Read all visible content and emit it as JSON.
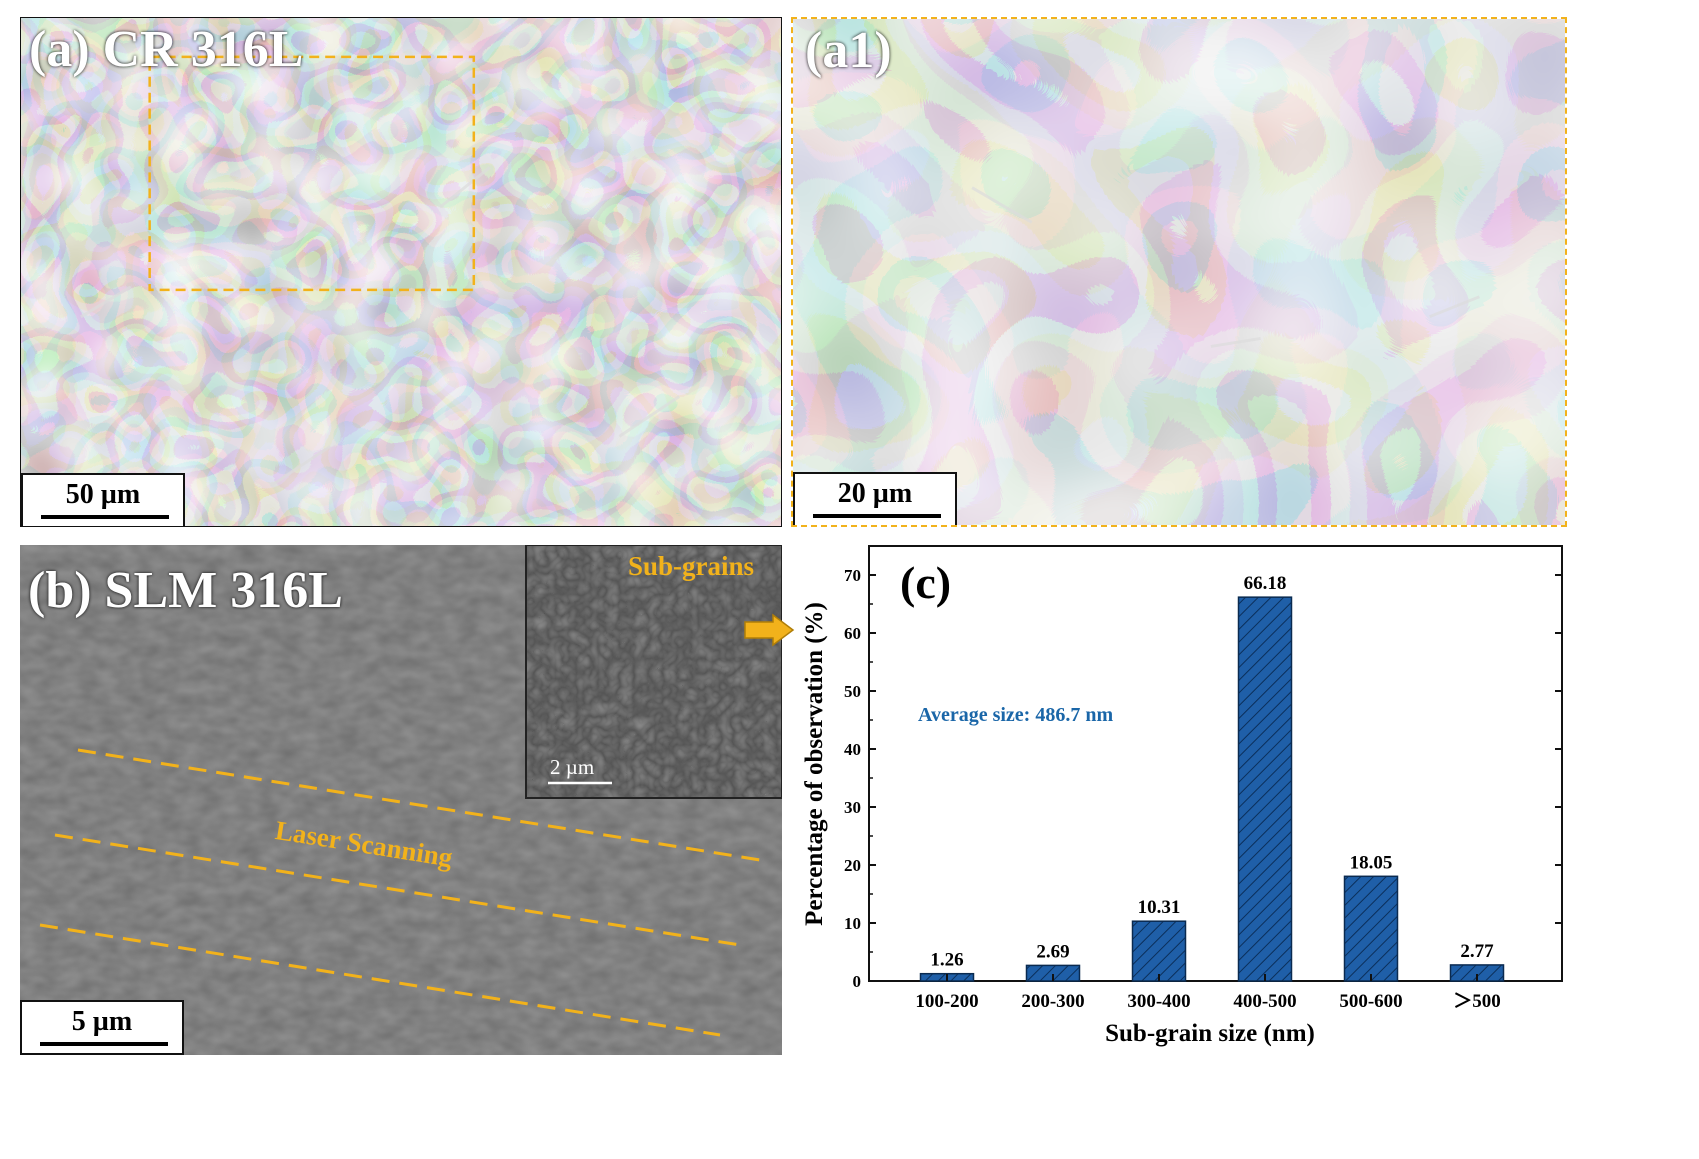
{
  "panels": {
    "a": {
      "label": "(a) CR 316L",
      "scale": "50 µm"
    },
    "a1": {
      "label": "(a1)",
      "scale": "20 µm"
    },
    "b": {
      "label": "(b) SLM 316L",
      "scale": "5 µm",
      "annotation": "Laser Scanning",
      "inset_label": "Sub-grains",
      "inset_scale": "2 µm"
    },
    "c": {
      "label": "(c)"
    }
  },
  "colors": {
    "highlight": "#f2b21b",
    "bar_fill": "#1f5fa8",
    "annotation_text": "#1a66a8"
  },
  "chart_data": {
    "type": "bar",
    "categories": [
      "100-200",
      "200-300",
      "300-400",
      "400-500",
      "500-600",
      "＞500"
    ],
    "values": [
      1.26,
      2.69,
      10.31,
      66.18,
      18.05,
      2.77
    ],
    "value_labels": [
      "1.26",
      "2.69",
      "10.31",
      "66.18",
      "18.05",
      "2.77"
    ],
    "xlabel": "Sub-grain size (nm)",
    "ylabel": "Percentage of observation (%)",
    "ylim": [
      0,
      75
    ],
    "yticks": [
      0,
      10,
      20,
      30,
      40,
      50,
      60,
      70
    ],
    "annotation": "Average size: 486.7 nm",
    "bar_pattern": "diagonal hatch",
    "grid": false
  }
}
